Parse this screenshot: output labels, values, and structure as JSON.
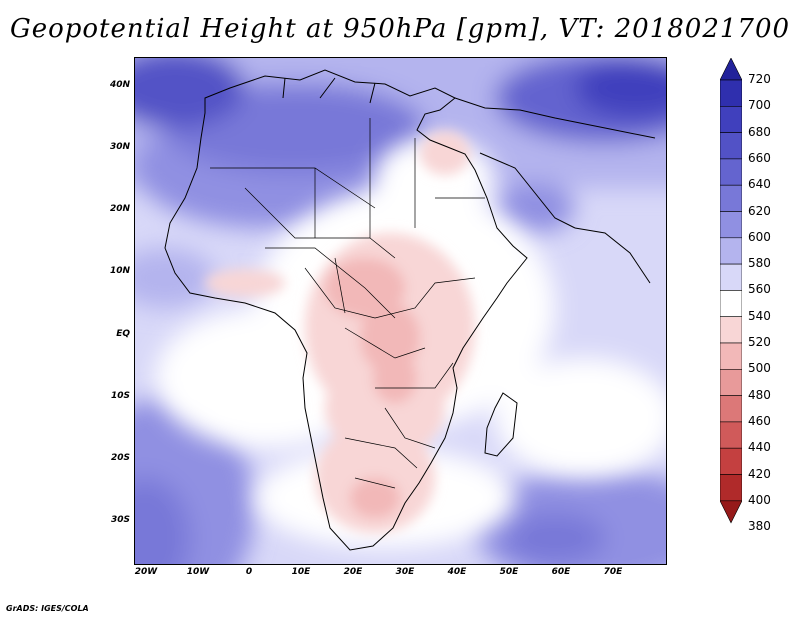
{
  "title": "Geopotential Height at 950hPa [gpm], VT: 2018021700",
  "map": {
    "variable": "Geopotential Height",
    "level": "950hPa",
    "units": "gpm",
    "valid_time": "2018021700",
    "lon_labels": [
      "20W",
      "10W",
      "0",
      "10E",
      "20E",
      "30E",
      "40E",
      "50E",
      "60E",
      "70E"
    ],
    "lat_labels": [
      "40N",
      "30N",
      "20N",
      "10N",
      "EQ",
      "10S",
      "20S",
      "30S"
    ]
  },
  "colorbar": {
    "labels": [
      "720",
      "700",
      "680",
      "660",
      "640",
      "620",
      "600",
      "580",
      "560",
      "540",
      "520",
      "500",
      "480",
      "460",
      "440",
      "420",
      "400",
      "380"
    ],
    "colors": [
      "#22229a",
      "#2f2fae",
      "#4040bd",
      "#5252c6",
      "#6464cf",
      "#7878d8",
      "#9090e2",
      "#b4b4ee",
      "#d8d8f8",
      "#ffffff",
      "#f8d6d6",
      "#f2b8b8",
      "#e89a9a",
      "#dc7878",
      "#d05a5a",
      "#c44040",
      "#b02a2a",
      "#961a1a"
    ]
  },
  "credit": "GrADS: IGES/COLA"
}
